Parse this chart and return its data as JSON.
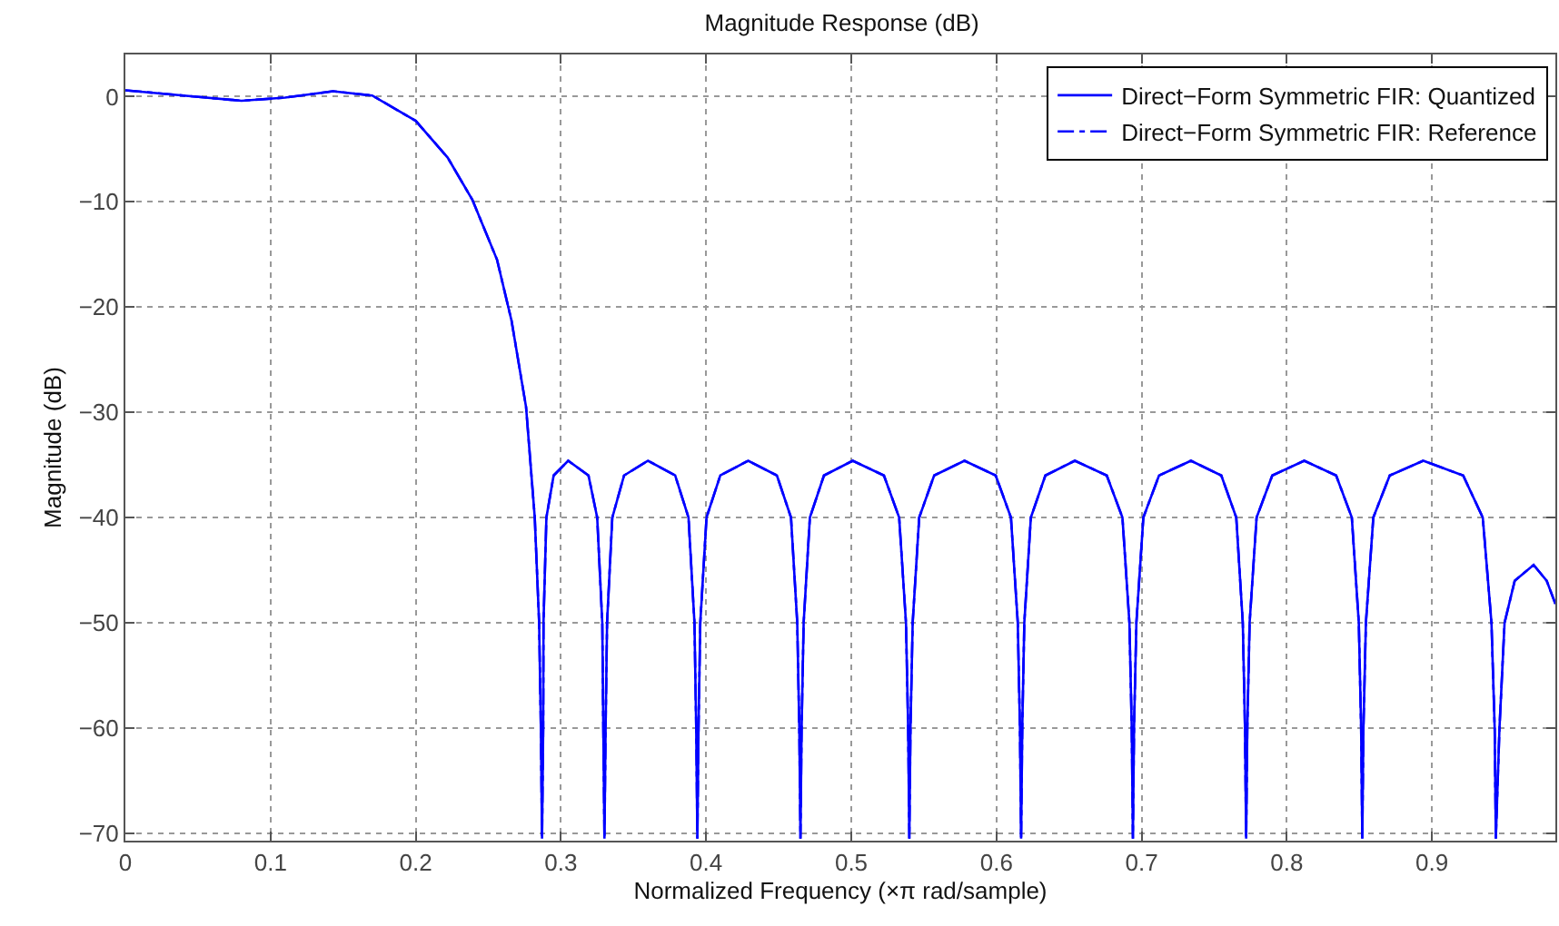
{
  "chart_data": {
    "type": "line",
    "title": "Magnitude Response (dB)",
    "xlabel": "Normalized Frequency (×π rad/sample)",
    "ylabel": "Magnitude (dB)",
    "x": [
      0,
      0.04,
      0.08,
      0.11,
      0.143,
      0.17,
      0.2,
      0.222,
      0.239,
      0.256,
      0.266,
      0.276,
      0.282,
      0.285,
      0.2862,
      0.287,
      0.2878,
      0.288,
      0.29,
      0.295,
      0.305,
      0.319,
      0.325,
      0.3285,
      0.3292,
      0.33,
      0.3308,
      0.3318,
      0.3354,
      0.3435,
      0.36,
      0.3787,
      0.3879,
      0.392,
      0.3932,
      0.394,
      0.3948,
      0.396,
      0.4003,
      0.4098,
      0.429,
      0.4488,
      0.4585,
      0.4628,
      0.4642,
      0.465,
      0.4658,
      0.4672,
      0.4715,
      0.4812,
      0.501,
      0.5225,
      0.533,
      0.5377,
      0.5392,
      0.54,
      0.5408,
      0.5423,
      0.5468,
      0.5571,
      0.578,
      0.5995,
      0.61,
      0.6147,
      0.6162,
      0.617,
      0.6178,
      0.6192,
      0.6237,
      0.6337,
      0.654,
      0.676,
      0.6868,
      0.6916,
      0.6932,
      0.694,
      0.6948,
      0.6964,
      0.7012,
      0.712,
      0.734,
      0.7549,
      0.7652,
      0.7697,
      0.7712,
      0.772,
      0.7728,
      0.7744,
      0.7792,
      0.79,
      0.812,
      0.834,
      0.8448,
      0.8496,
      0.8512,
      0.852,
      0.8528,
      0.8545,
      0.8596,
      0.8709,
      0.894,
      0.9215,
      0.935,
      0.941,
      0.9432,
      0.944,
      0.9465,
      0.95,
      0.957,
      0.97,
      0.979,
      0.985
    ],
    "series": [
      {
        "name": "Direct−Form Symmetric FIR: Quantized",
        "color": "#0000ff",
        "line_style": "solid",
        "values": [
          0.6,
          0.1,
          -0.4,
          -0.1,
          0.5,
          0.1,
          -2.3,
          -5.8,
          -9.8,
          -15.5,
          -21.3,
          -29.5,
          -40,
          -50,
          -60,
          -70.5,
          -60,
          -50,
          -40,
          -36,
          -34.6,
          -36,
          -40,
          -50,
          -60,
          -70.5,
          -60,
          -50,
          -40,
          -36,
          -34.6,
          -36,
          -40,
          -50,
          -60,
          -70.5,
          -60,
          -50,
          -40,
          -36,
          -34.6,
          -36,
          -40,
          -50,
          -60,
          -70.5,
          -60,
          -50,
          -40,
          -36,
          -34.6,
          -36,
          -40,
          -50,
          -60,
          -70.5,
          -60,
          -50,
          -40,
          -36,
          -34.6,
          -36,
          -40,
          -50,
          -60,
          -70.5,
          -60,
          -50,
          -40,
          -36,
          -34.6,
          -36,
          -40,
          -50,
          -60,
          -70.5,
          -60,
          -50,
          -40,
          -36,
          -34.6,
          -36,
          -40,
          -50,
          -60,
          -70.5,
          -60,
          -50,
          -40,
          -36,
          -34.6,
          -36,
          -40,
          -50,
          -60,
          -70.5,
          -60,
          -50,
          -40,
          -36,
          -34.6,
          -36,
          -40,
          -50,
          -60,
          -70.5,
          -60,
          -50,
          -46,
          -44.5,
          -46,
          -48.2
        ]
      },
      {
        "name": "Direct−Form Symmetric FIR: Reference",
        "color": "#0000ff",
        "line_style": "dashdot",
        "values": [
          0.6,
          0.1,
          -0.4,
          -0.1,
          0.5,
          0.1,
          -2.3,
          -5.8,
          -9.8,
          -15.5,
          -21.3,
          -29.5,
          -40,
          -50,
          -60,
          -70.5,
          -60,
          -50,
          -40,
          -36,
          -34.6,
          -36,
          -40,
          -50,
          -60,
          -70.5,
          -60,
          -50,
          -40,
          -36,
          -34.6,
          -36,
          -40,
          -50,
          -60,
          -70.5,
          -60,
          -50,
          -40,
          -36,
          -34.6,
          -36,
          -40,
          -50,
          -60,
          -70.5,
          -60,
          -50,
          -40,
          -36,
          -34.6,
          -36,
          -40,
          -50,
          -60,
          -70.5,
          -60,
          -50,
          -40,
          -36,
          -34.6,
          -36,
          -40,
          -50,
          -60,
          -70.5,
          -60,
          -50,
          -40,
          -36,
          -34.6,
          -36,
          -40,
          -50,
          -60,
          -70.5,
          -60,
          -50,
          -40,
          -36,
          -34.6,
          -36,
          -40,
          -50,
          -60,
          -70.5,
          -60,
          -50,
          -40,
          -36,
          -34.6,
          -36,
          -40,
          -50,
          -60,
          -70.5,
          -60,
          -50,
          -40,
          -36,
          -34.6,
          -36,
          -40,
          -50,
          -60,
          -70.5,
          -60,
          -50,
          -46,
          -44.5,
          -46,
          -48.2
        ]
      }
    ],
    "xlim": [
      0,
      0.985
    ],
    "ylim": [
      -70.7,
      4
    ],
    "xticks": [
      0,
      0.1,
      0.2,
      0.3,
      0.4,
      0.5,
      0.6,
      0.7,
      0.8,
      0.9
    ],
    "yticks": [
      {
        "value": -70,
        "label": "−70"
      },
      {
        "value": -60,
        "label": "−60"
      },
      {
        "value": -50,
        "label": "−50"
      },
      {
        "value": -40,
        "label": "−40"
      },
      {
        "value": -30,
        "label": "−30"
      },
      {
        "value": -20,
        "label": "−20"
      },
      {
        "value": -10,
        "label": "−10"
      },
      0
    ],
    "grid": true,
    "legend": "top right",
    "marker": "none"
  }
}
